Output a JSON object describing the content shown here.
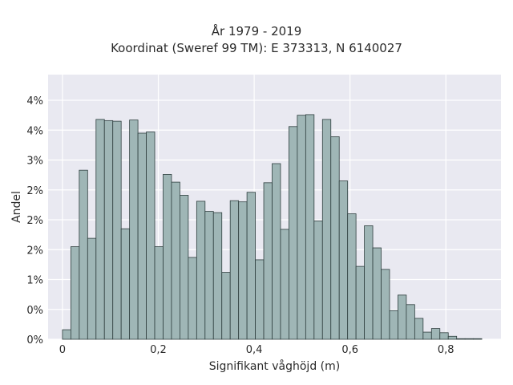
{
  "chart_data": {
    "type": "bar",
    "title": "År 1979 - 2019",
    "subtitle": "Koordinat (Sweref 99 TM): E 373313, N 6140027",
    "xlabel": "Signifikant våghöjd (m)",
    "ylabel": "Andel",
    "xlim": [
      -0.03,
      0.915
    ],
    "ylim": [
      0,
      0.0443
    ],
    "grid": true,
    "bin_width": 0.0175,
    "bin_start": 0.0,
    "x_ticks": [
      {
        "value": 0.0,
        "label": "0"
      },
      {
        "value": 0.2,
        "label": "0,2"
      },
      {
        "value": 0.4,
        "label": "0,4"
      },
      {
        "value": 0.6,
        "label": "0,6"
      },
      {
        "value": 0.8,
        "label": "0,8"
      }
    ],
    "y_ticks": [
      {
        "value": 0.0,
        "label": "0%"
      },
      {
        "value": 0.005,
        "label": "0%"
      },
      {
        "value": 0.01,
        "label": "1%"
      },
      {
        "value": 0.015,
        "label": "2%"
      },
      {
        "value": 0.02,
        "label": "2%"
      },
      {
        "value": 0.025,
        "label": "2%"
      },
      {
        "value": 0.03,
        "label": "3%"
      },
      {
        "value": 0.035,
        "label": "4%"
      },
      {
        "value": 0.04,
        "label": "4%"
      }
    ],
    "values": [
      0.0016,
      0.0155,
      0.0283,
      0.0169,
      0.0368,
      0.0366,
      0.0365,
      0.0185,
      0.0367,
      0.0345,
      0.0347,
      0.0155,
      0.0276,
      0.0263,
      0.0241,
      0.0137,
      0.0231,
      0.0214,
      0.0212,
      0.0112,
      0.0232,
      0.023,
      0.0246,
      0.0133,
      0.0262,
      0.0294,
      0.0184,
      0.0356,
      0.0375,
      0.0376,
      0.0198,
      0.0368,
      0.0339,
      0.0265,
      0.021,
      0.0122,
      0.019,
      0.0153,
      0.0117,
      0.0048,
      0.0074,
      0.0058,
      0.0035,
      0.0012,
      0.0018,
      0.0011,
      0.0005,
      0.0001,
      0.0001,
      0.0001
    ],
    "bar_color": "#9fb6b6",
    "bar_edge_color": "#2f3f3f",
    "plot_background": "#e9e9f1",
    "grid_color": "#ffffff"
  }
}
